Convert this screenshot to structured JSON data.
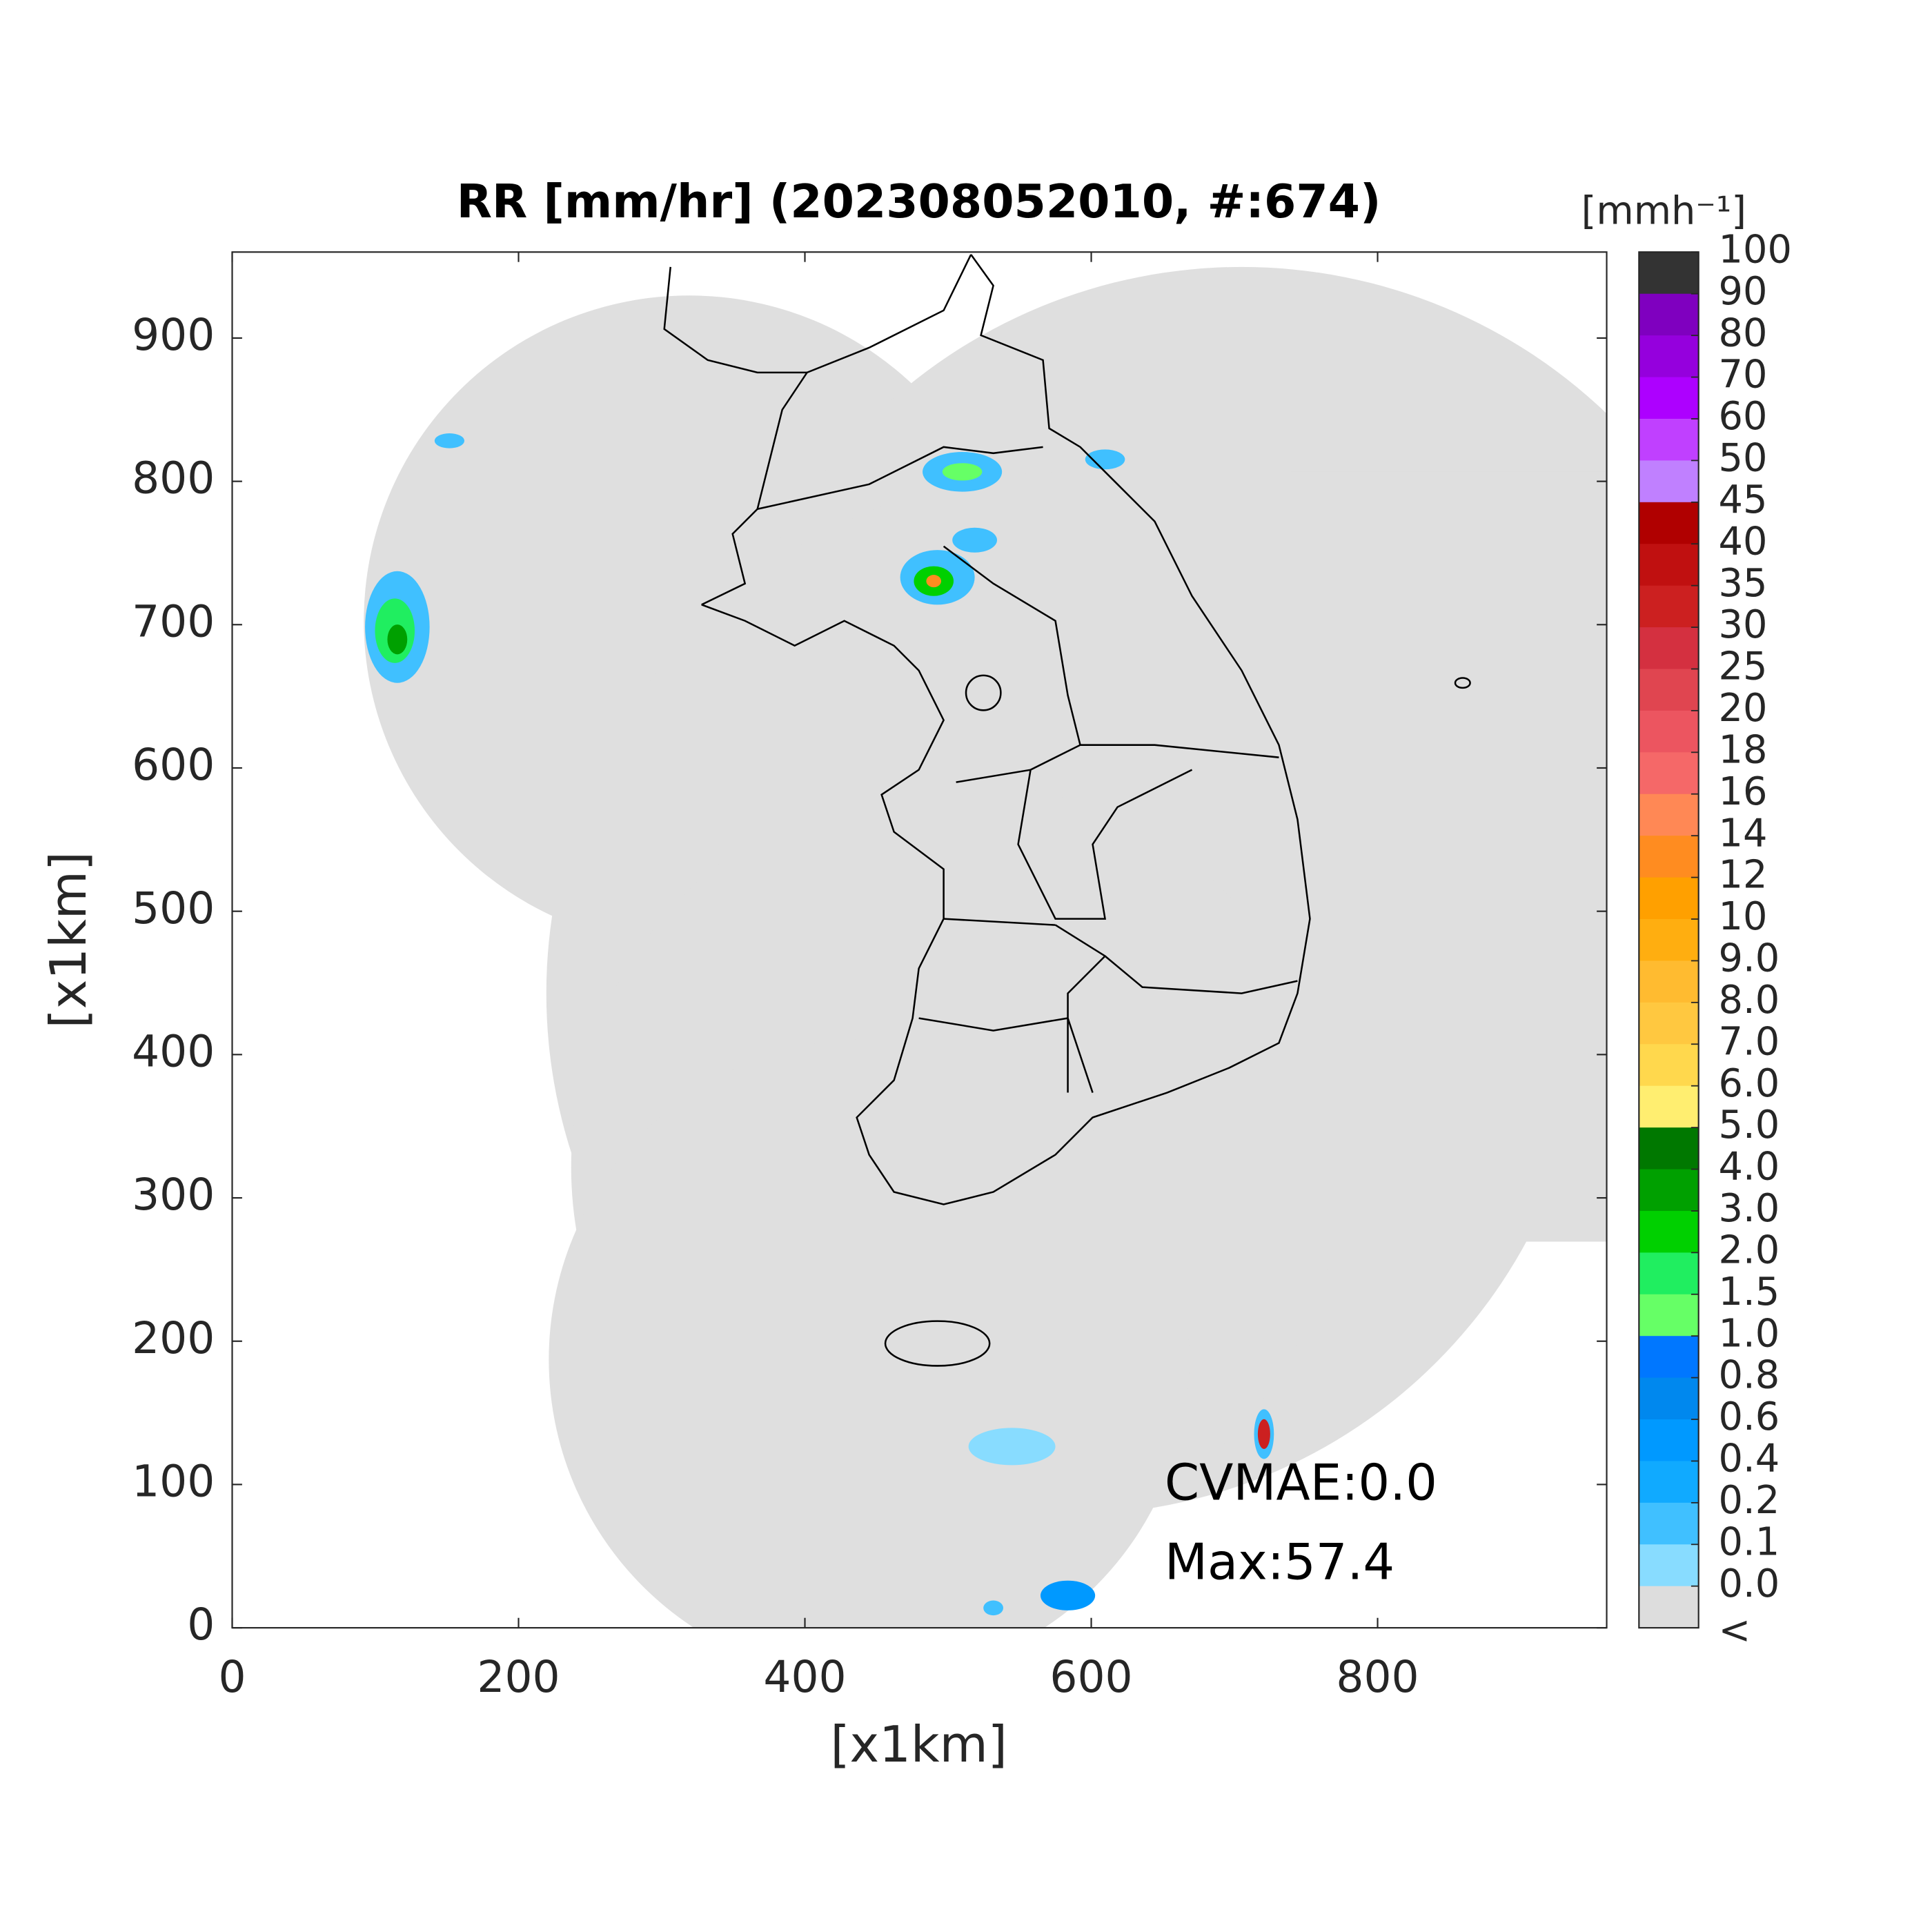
{
  "chart_data": {
    "type": "map",
    "title": "RR [mm/hr] (202308052010, #:674)",
    "x_label": "[x1km]",
    "y_label": "[x1km]",
    "xlim": [
      0,
      960
    ],
    "ylim": [
      0,
      960
    ],
    "xticks": [
      0,
      200,
      400,
      600,
      800
    ],
    "yticks": [
      0,
      100,
      200,
      300,
      400,
      500,
      600,
      700,
      800,
      900
    ],
    "annotations": [
      "CVMAE:0.0",
      "Max:57.4"
    ],
    "colorbar": {
      "label": "[mmh⁻¹]",
      "ticks": [
        100,
        90,
        80,
        70,
        60,
        50,
        45,
        40,
        35,
        30,
        25,
        20,
        18,
        16,
        14,
        12,
        10,
        {
          "value": 9,
          "label": "9.0"
        },
        {
          "value": 8,
          "label": "8.0"
        },
        {
          "value": 7,
          "label": "7.0"
        },
        {
          "value": 6,
          "label": "6.0"
        },
        {
          "value": 5,
          "label": "5.0"
        },
        {
          "value": 4,
          "label": "4.0"
        },
        {
          "value": 3,
          "label": "3.0"
        },
        {
          "value": 2,
          "label": "2.0"
        },
        1.5,
        {
          "value": 1,
          "label": "1.0"
        },
        0.8,
        0.6,
        0.4,
        0.2,
        0.1,
        {
          "value": 0,
          "label": "0.0"
        }
      ],
      "colors": [
        "#333333",
        "#7f00bf",
        "#9500dd",
        "#ad00ff",
        "#c040ff",
        "#c080ff",
        "#b00000",
        "#c01010",
        "#cc2020",
        "#d43040",
        "#e04550",
        "#ec5560",
        "#f56868",
        "#ff8855",
        "#ff8c20",
        "#ffa000",
        "#ffae10",
        "#ffbb30",
        "#ffc840",
        "#ffd84d",
        "#ffee70",
        "#007800",
        "#00a000",
        "#00d000",
        "#20ee60",
        "#66ff66",
        "#0077ff",
        "#0088ee",
        "#0099ff",
        "#10aaff",
        "#40c0ff",
        "#88dcff",
        "#dddddd"
      ],
      "under_label": "<",
      "under_color": "#ffffff"
    }
  }
}
